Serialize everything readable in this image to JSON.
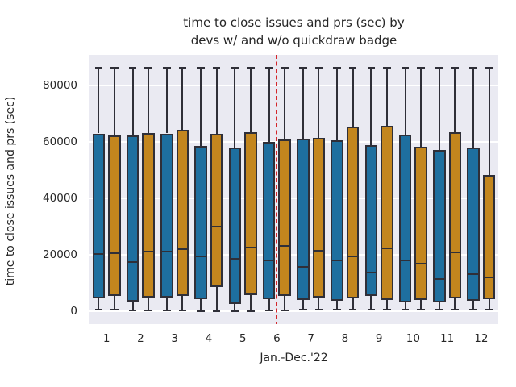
{
  "colors": {
    "figure_bg": "#ffffff",
    "plot_bg": "#eaeaf2",
    "grid": "#ffffff",
    "box_blue": "#1e6f9f",
    "box_gold": "#c3861e",
    "edge": "#2f2f38",
    "vline_red": "#d4262b",
    "text": "#262626"
  },
  "chart_data": {
    "type": "boxplot",
    "title_lines": [
      "time to close issues and prs (sec) by",
      "devs w/ and w/o quickdraw badge"
    ],
    "title": "time to close issues and prs (sec) by devs w/ and w/o quickdraw badge",
    "xlabel": "Jan.-Dec.'22",
    "ylabel": "time to close issues and prs (sec)",
    "categories": [
      "1",
      "2",
      "3",
      "4",
      "5",
      "6",
      "7",
      "8",
      "9",
      "10",
      "11",
      "12"
    ],
    "yticks": [
      0,
      20000,
      40000,
      60000,
      80000
    ],
    "yticklabels": [
      "0",
      "20000",
      "40000",
      "60000",
      "80000"
    ],
    "ylim": [
      -4571,
      90857
    ],
    "grid": "horizontal-major",
    "legend": "none",
    "vline": {
      "at_category": "6",
      "color": "#d4262b",
      "style": "dashed"
    },
    "series": [
      {
        "name": "blue",
        "color": "#1e6f9f",
        "boxes": [
          {
            "whisker_low": 500,
            "q1": 4600,
            "median": 20300,
            "q3": 63000,
            "whisker_high": 86400
          },
          {
            "whisker_low": 400,
            "q1": 3300,
            "median": 17400,
            "q3": 62400,
            "whisker_high": 86400
          },
          {
            "whisker_low": 400,
            "q1": 4900,
            "median": 21100,
            "q3": 63000,
            "whisker_high": 86400
          },
          {
            "whisker_low": 100,
            "q1": 4400,
            "median": 19400,
            "q3": 58700,
            "whisker_high": 86400
          },
          {
            "whisker_low": 100,
            "q1": 2700,
            "median": 18600,
            "q3": 57900,
            "whisker_high": 86400
          },
          {
            "whisker_low": 300,
            "q1": 4400,
            "median": 18100,
            "q3": 60100,
            "whisker_high": 86400
          },
          {
            "whisker_low": 700,
            "q1": 4100,
            "median": 15700,
            "q3": 61200,
            "whisker_high": 86400
          },
          {
            "whisker_low": 700,
            "q1": 3800,
            "median": 18000,
            "q3": 60600,
            "whisker_high": 86400
          },
          {
            "whisker_low": 700,
            "q1": 5500,
            "median": 13600,
            "q3": 58900,
            "whisker_high": 86400
          },
          {
            "whisker_low": 700,
            "q1": 3100,
            "median": 18100,
            "q3": 62700,
            "whisker_high": 86400
          },
          {
            "whisker_low": 700,
            "q1": 3100,
            "median": 11400,
            "q3": 57100,
            "whisker_high": 86400
          },
          {
            "whisker_low": 700,
            "q1": 3600,
            "median": 13100,
            "q3": 57900,
            "whisker_high": 86400
          }
        ]
      },
      {
        "name": "gold",
        "color": "#c3861e",
        "boxes": [
          {
            "whisker_low": 500,
            "q1": 5300,
            "median": 20600,
            "q3": 62200,
            "whisker_high": 86400
          },
          {
            "whisker_low": 400,
            "q1": 4800,
            "median": 21200,
            "q3": 63100,
            "whisker_high": 86400
          },
          {
            "whisker_low": 400,
            "q1": 5500,
            "median": 21900,
            "q3": 64200,
            "whisker_high": 86400
          },
          {
            "whisker_low": 100,
            "q1": 8500,
            "median": 30000,
            "q3": 62900,
            "whisker_high": 86400
          },
          {
            "whisker_low": 100,
            "q1": 5700,
            "median": 22500,
            "q3": 63400,
            "whisker_high": 86400
          },
          {
            "whisker_low": 300,
            "q1": 5300,
            "median": 23100,
            "q3": 61000,
            "whisker_high": 86400
          },
          {
            "whisker_low": 700,
            "q1": 4800,
            "median": 21500,
            "q3": 61500,
            "whisker_high": 86400
          },
          {
            "whisker_low": 700,
            "q1": 4600,
            "median": 19300,
            "q3": 65300,
            "whisker_high": 86400
          },
          {
            "whisker_low": 700,
            "q1": 4100,
            "median": 22200,
            "q3": 65700,
            "whisker_high": 86400
          },
          {
            "whisker_low": 700,
            "q1": 4100,
            "median": 17000,
            "q3": 58400,
            "whisker_high": 86400
          },
          {
            "whisker_low": 700,
            "q1": 4600,
            "median": 21000,
            "q3": 63400,
            "whisker_high": 86400
          },
          {
            "whisker_low": 700,
            "q1": 4300,
            "median": 11900,
            "q3": 48400,
            "whisker_high": 86400
          }
        ]
      }
    ]
  }
}
